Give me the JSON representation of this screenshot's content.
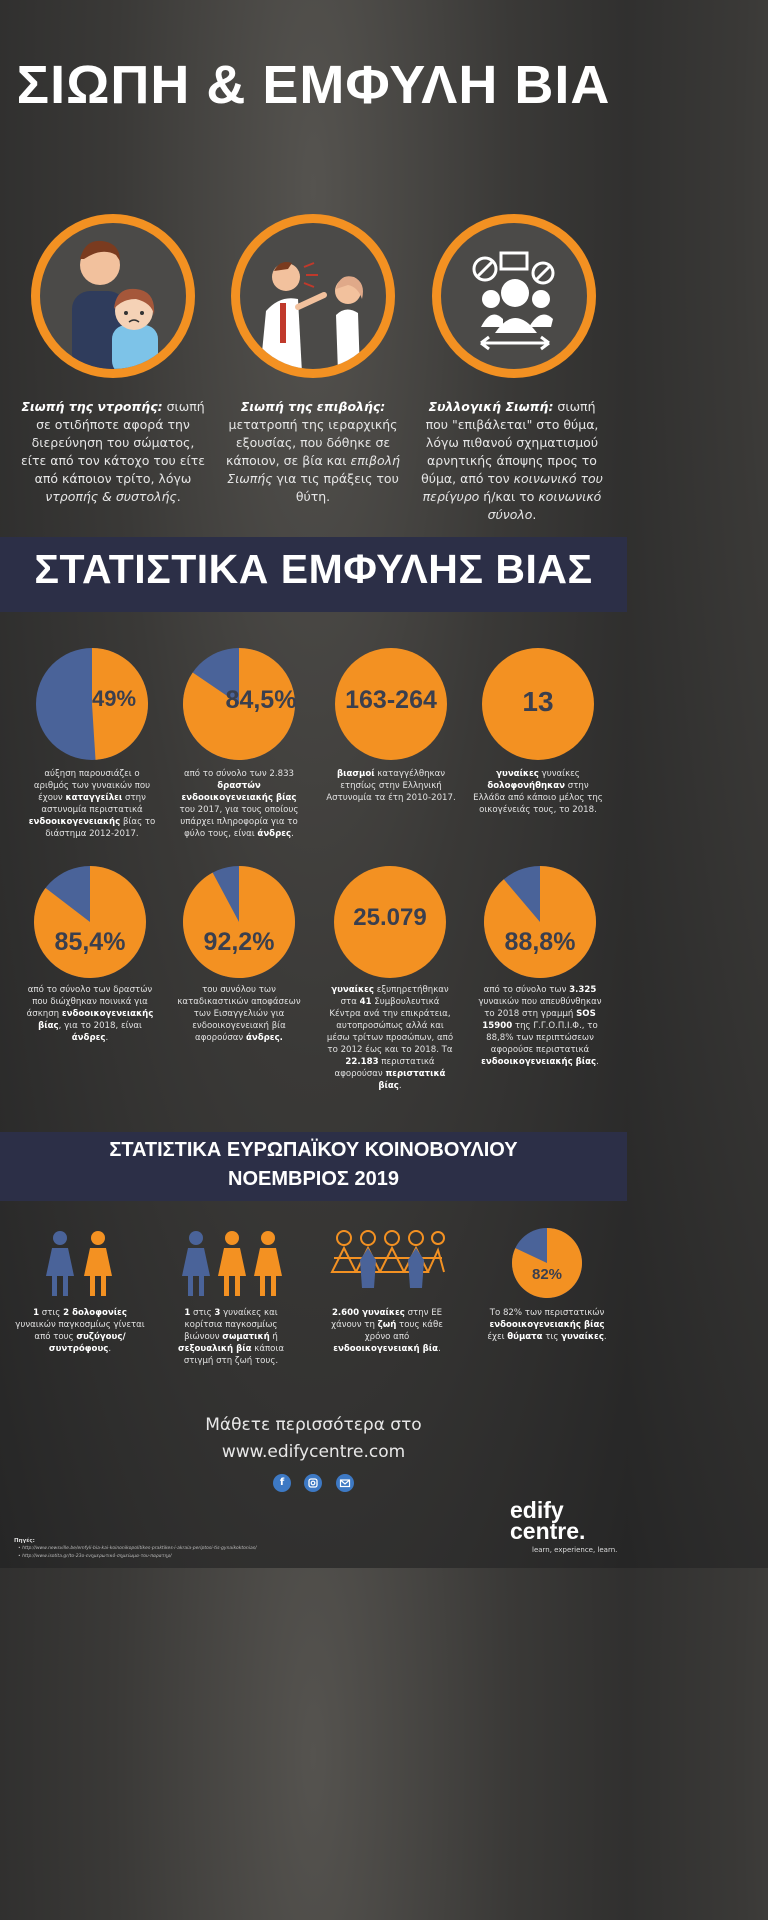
{
  "header": {
    "title": "ΣΙΩΠΗ & ΕΜΦΥΛΗ ΒΙΑ"
  },
  "silence_types": [
    {
      "term": "Σιωπή της ντροπής:",
      "text": " σιωπή σε οτιδήποτε αφορά την διερεύνηση του σώματος, είτε από τον κάτοχο του είτε από κάποιον τρίτο, λόγω ",
      "emph": "ντροπής & συστολής",
      "tail": "."
    },
    {
      "term": "Σιωπή της επιβολής:",
      "text": " μετατροπή της ιεραρχικής εξουσίας, που δόθηκε σε κάποιον, σε βία και ",
      "emph": "επιβολή Σιωπής",
      "tail": " για τις πράξεις του θύτη."
    },
    {
      "term": "Συλλογική Σιωπή:",
      "text": " σιωπή που \"επιβάλεται\" στο θύμα, λόγω πιθανού σχηματισμού αρνητικής άποψης προς το θύμα, από τον ",
      "emph": "κοινωνικό του περίγυρο",
      "mid": " ή/και το ",
      "emph2": "κοινωνικό σύνολο",
      "tail": "."
    }
  ],
  "stats_banner": {
    "title": "ΣΤΑΤΙΣΤΙΚΑ ΕΜΦΥΛΗΣ ΒΙΑΣ"
  },
  "colors": {
    "orange": "#f39122",
    "blue": "#4a6399",
    "navy": "#2c2f47",
    "value_text": "#3a3f4e"
  },
  "stats": [
    {
      "value": "49%",
      "pie_fraction": 0.49,
      "desc": [
        [
          "αύξηση παρουσιάζει ο αριθμός των γυναικών που έχουν ",
          false
        ],
        [
          "καταγγείλει",
          true
        ],
        [
          " στην αστυνομία περιστατικά ",
          false
        ],
        [
          "ενδοοικογενειακής",
          true
        ],
        [
          " βίας το διάστημα 2012-2017.",
          false
        ]
      ]
    },
    {
      "value": "84,5%",
      "pie_fraction": 0.845,
      "desc": [
        [
          "από το σύνολο των 2.833 ",
          false
        ],
        [
          "δραστών ενδοοικογενειακής βίας",
          true
        ],
        [
          " του 2017, για τους οποίους υπάρχει πληροφορία για το φύλο τους, είναι ",
          false
        ],
        [
          "άνδρες",
          true
        ],
        [
          ".",
          false
        ]
      ]
    },
    {
      "value": "163-264",
      "pie_fraction": 1,
      "desc": [
        [
          "βιασμοί",
          true
        ],
        [
          " καταγγέλθηκαν ετησίως στην Ελληνική Αστυνομία τα έτη 2010-2017.",
          false
        ]
      ]
    },
    {
      "value": "13",
      "pie_fraction": 1,
      "desc": [
        [
          "γυναίκες",
          true
        ],
        [
          " γυναίκες ",
          false
        ],
        [
          "δολοφονήθηκαν",
          true
        ],
        [
          " στην Ελλάδα από κάποιο μέλος της οικογένειάς τους, το 2018.",
          false
        ]
      ]
    },
    {
      "value": "85,4%",
      "pie_fraction": 0.854,
      "desc": [
        [
          "από το σύνολο των δραστών που διώχθηκαν ποινικά για άσκηση ",
          false
        ],
        [
          "ενδοοικογενειακής βίας",
          true
        ],
        [
          ", για το 2018, είναι ",
          false
        ],
        [
          "άνδρες",
          true
        ],
        [
          ".",
          false
        ]
      ]
    },
    {
      "value": "92,2%",
      "pie_fraction": 0.922,
      "desc": [
        [
          "του συνόλου των καταδικαστικών αποφάσεων των Εισαγγελιών για ενδοοικογενειακή βία αφορούσαν ",
          false
        ],
        [
          "άνδρες.",
          true
        ]
      ]
    },
    {
      "value": "25.079",
      "pie_fraction": 1,
      "desc": [
        [
          "γυναίκες",
          true
        ],
        [
          " εξυπηρετήθηκαν στα ",
          false
        ],
        [
          "41",
          true
        ],
        [
          " Συμβουλευτικά Κέντρα ανά την επικράτεια, αυτοπροσώπως αλλά και μέσω τρίτων προσώπων, από το 2012 έως και το 2018.  Τα ",
          false
        ],
        [
          "22.183",
          true
        ],
        [
          " περιστατικά αφορούσαν ",
          false
        ],
        [
          "περιστατικά βίας",
          true
        ],
        [
          ".",
          false
        ]
      ]
    },
    {
      "value": "88,8%",
      "pie_fraction": 0.888,
      "desc": [
        [
          "από το σύνολο των ",
          false
        ],
        [
          "3.325",
          true
        ],
        [
          " γυναικών που απευθύνθηκαν το 2018 στη γραμμή ",
          false
        ],
        [
          "SOS 15900",
          true
        ],
        [
          " της Γ.Γ.Ο.Π.Ι.Φ., το 88,8% των περιπτώσεων αφορούσε περιστατικά ",
          false
        ],
        [
          "ενδοοικογενειακής βίας",
          true
        ],
        [
          ".",
          false
        ]
      ]
    }
  ],
  "eu_banner": {
    "line1": "ΣΤΑΤΙΣΤΙΚΑ ΕΥΡΩΠΑΪΚΟΥ ΚΟΙΝΟΒΟΥΛΙΟΥ",
    "line2": "ΝΟΕΜΒΡΙΟΣ 2019"
  },
  "eu_stats": [
    {
      "desc": [
        [
          "1",
          true
        ],
        [
          " στις ",
          false
        ],
        [
          "2 δολοφονίες",
          true
        ],
        [
          " γυναικών παγκοσμίως γίνεται από τους ",
          false
        ],
        [
          "συζύγους/συντρόφους",
          true
        ],
        [
          ".",
          false
        ]
      ]
    },
    {
      "desc": [
        [
          "1",
          true
        ],
        [
          " στις ",
          false
        ],
        [
          "3",
          true
        ],
        [
          " γυναίκες και κορίτσια παγκοσμίως βιώνουν ",
          false
        ],
        [
          "σωματική",
          true
        ],
        [
          " ή ",
          false
        ],
        [
          "σεξουαλική βία",
          true
        ],
        [
          " κάποια στιγμή στη ζωή τους.",
          false
        ]
      ]
    },
    {
      "desc": [
        [
          "2.600 γυναίκες",
          true
        ],
        [
          " στην ΕΕ χάνουν τη ",
          false
        ],
        [
          "ζωή",
          true
        ],
        [
          " τους κάθε χρόνο από ",
          false
        ],
        [
          "ενδοοικογενειακή βία",
          true
        ],
        [
          ".",
          false
        ]
      ]
    },
    {
      "value": "82%",
      "pie_fraction": 0.82,
      "desc": [
        [
          "Το 82% των περιστατικών ",
          false
        ],
        [
          "ενδοοικογενειακής βίας",
          true
        ],
        [
          " έχει ",
          false
        ],
        [
          "θύματα",
          true
        ],
        [
          " τις ",
          false
        ],
        [
          "γυναίκες",
          true
        ],
        [
          ".",
          false
        ]
      ]
    }
  ],
  "footer": {
    "learn_more": "Μάθετε περισσότερα στο",
    "url": "www.edifycentre.com",
    "social": [
      "facebook-icon",
      "instagram-icon",
      "email-icon"
    ],
    "sources_label": "Πηγές:",
    "sources": [
      "http://www.newsville.be/emfyli-bia-kai-koinonikopolitikes-praktikes-i-akraia-periptosi-tis-gynaikoktonias/",
      "http://www.isotita.gr/to-23o-ενημερωτικό-σημείωμα-του-παρατηρ/"
    ],
    "logo_line1": "edify",
    "logo_line2": "centre.",
    "tagline": "learn, experience, learn."
  }
}
